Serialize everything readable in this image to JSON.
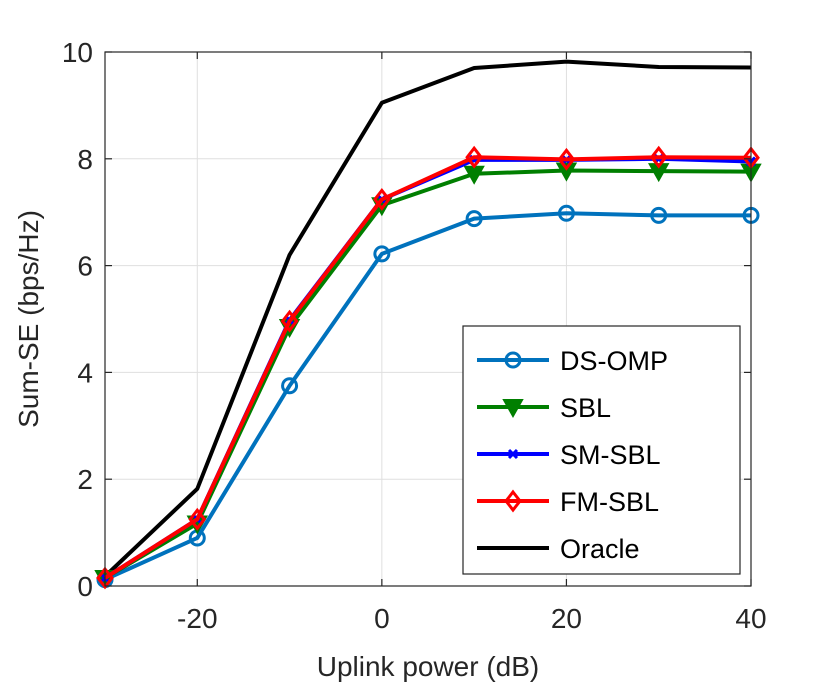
{
  "chart_data": {
    "type": "line",
    "title": "",
    "xlabel": "Uplink power (dB)",
    "ylabel": "Sum-SE (bps/Hz)",
    "xlim": [
      -30,
      40
    ],
    "ylim": [
      0,
      10
    ],
    "xticks": [
      -20,
      0,
      20,
      40
    ],
    "yticks": [
      0,
      2,
      4,
      6,
      8,
      10
    ],
    "grid": true,
    "legend_position": "bottom-right",
    "x": [
      -30,
      -20,
      -10,
      0,
      10,
      20,
      30,
      40
    ],
    "series": [
      {
        "name": "DS-OMP",
        "color": "#0072BD",
        "marker": "circle",
        "values": [
          0.12,
          0.9,
          3.75,
          6.22,
          6.88,
          6.98,
          6.94,
          6.94
        ]
      },
      {
        "name": "SBL",
        "color": "#007F00",
        "marker": "triangle-down",
        "values": [
          0.15,
          1.17,
          4.85,
          7.13,
          7.72,
          7.78,
          7.77,
          7.76
        ]
      },
      {
        "name": "SM-SBL",
        "color": "#0000FF",
        "marker": "x",
        "values": [
          0.15,
          1.25,
          4.98,
          7.24,
          7.98,
          7.98,
          8.0,
          7.95
        ]
      },
      {
        "name": "FM-SBL",
        "color": "#FF0000",
        "marker": "diamond",
        "values": [
          0.15,
          1.25,
          4.96,
          7.24,
          8.03,
          7.99,
          8.03,
          8.02
        ]
      },
      {
        "name": "Oracle",
        "color": "#000000",
        "marker": "none",
        "values": [
          0.18,
          1.82,
          6.2,
          9.05,
          9.7,
          9.82,
          9.72,
          9.71
        ]
      }
    ]
  }
}
